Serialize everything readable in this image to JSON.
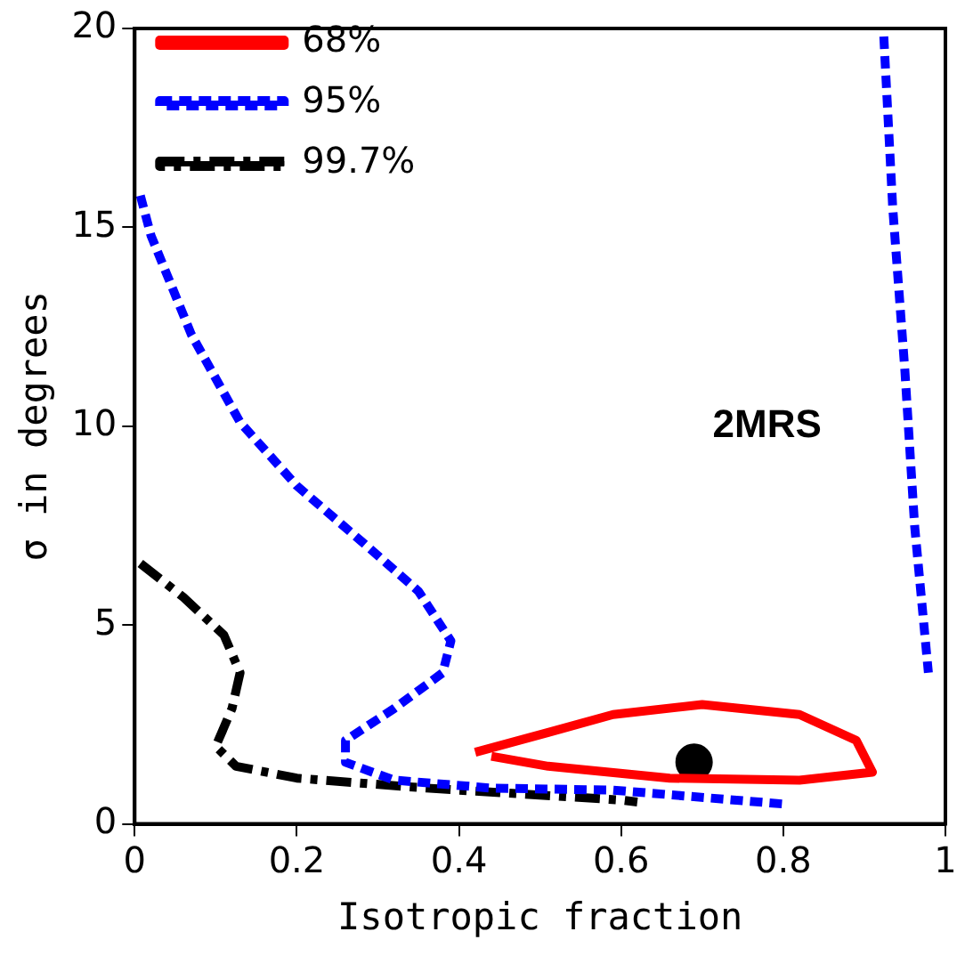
{
  "chart_data": {
    "type": "line",
    "xlabel": "Isotropic fraction",
    "ylabel": "σ in degrees",
    "annotations": [
      "2MRS"
    ],
    "xlim": [
      0,
      1
    ],
    "xticks": [
      0,
      0.2,
      0.4,
      0.6,
      0.8,
      1
    ],
    "ylim": [
      0,
      20
    ],
    "yticks": [
      0,
      5,
      10,
      15,
      20
    ],
    "legend": "top left",
    "series": [
      {
        "name": "68%",
        "color": "#ff0000",
        "line_style": "solid",
        "x": [
          0.42,
          0.51,
          0.59,
          0.7,
          0.82,
          0.89,
          0.91,
          0.82,
          0.66,
          0.51,
          0.44
        ],
        "values": [
          1.8,
          2.3,
          2.75,
          3.0,
          2.75,
          2.1,
          1.3,
          1.1,
          1.15,
          1.45,
          1.7
        ]
      },
      {
        "name": "95%",
        "color": "#0000ff",
        "line_style": "dotted",
        "x": [
          0.007,
          0.02,
          0.07,
          0.13,
          0.2,
          0.28,
          0.35,
          0.39,
          0.38,
          0.32,
          0.26,
          0.26,
          0.32,
          0.44,
          0.59,
          0.8,
          null,
          0.924,
          0.935,
          0.95,
          0.962,
          0.979
        ],
        "values": [
          15.8,
          14.8,
          12.3,
          10.1,
          8.5,
          7.1,
          5.85,
          4.6,
          3.8,
          2.9,
          2.1,
          1.55,
          1.1,
          0.9,
          0.85,
          0.5,
          null,
          19.8,
          15.5,
          11.4,
          7.5,
          3.8
        ]
      },
      {
        "name": "99.7%",
        "color": "#000000",
        "line_style": "dashed",
        "x": [
          0.007,
          0.06,
          0.11,
          0.13,
          0.12,
          0.1,
          0.125,
          0.2,
          0.36,
          0.6,
          0.62
        ],
        "values": [
          6.55,
          5.7,
          4.75,
          3.8,
          2.9,
          1.95,
          1.45,
          1.15,
          0.9,
          0.6,
          0.55
        ]
      },
      {
        "type": "scatter",
        "color": "#000000",
        "marker": "circle",
        "x": [
          0.69
        ],
        "values": [
          1.55
        ]
      }
    ]
  }
}
